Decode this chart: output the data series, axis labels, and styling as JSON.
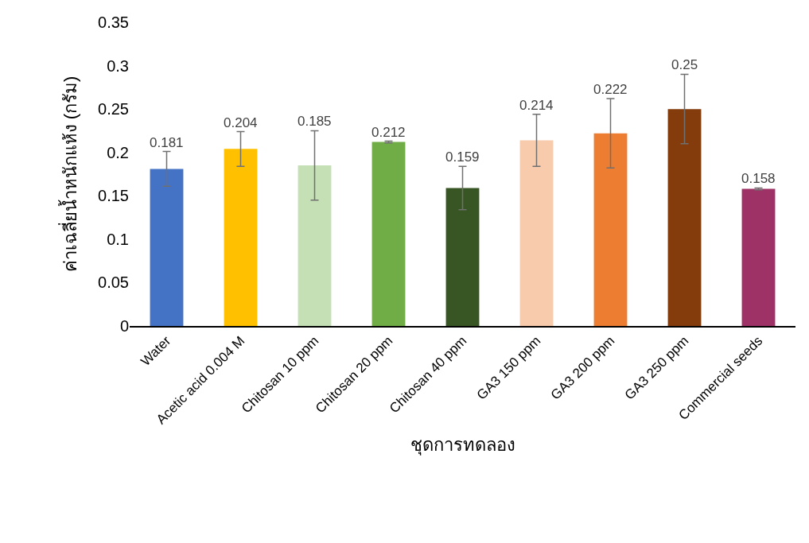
{
  "chart_data": {
    "type": "bar",
    "xlabel": "ชุดการทดลอง",
    "ylabel": "ค่าเฉลี่ยน้ำหนักแห้ง (กรัม)",
    "categories": [
      "Water",
      "Acetic acid 0.004 M",
      "Chitosan 10 ppm",
      "Chitosan 20 ppm",
      "Chitosan 40 ppm",
      "GA3 150 ppm",
      "GA3 200 ppm",
      "GA3 250 ppm",
      "Commercial seeds"
    ],
    "values": [
      0.181,
      0.204,
      0.185,
      0.212,
      0.159,
      0.214,
      0.222,
      0.25,
      0.158
    ],
    "colors": [
      "#4472c4",
      "#ffc000",
      "#c5e0b4",
      "#70ad47",
      "#375623",
      "#f8cbad",
      "#ed7d31",
      "#843c0c",
      "#9e3165"
    ],
    "errors": [
      0.02,
      0.02,
      0.04,
      0.001,
      0.025,
      0.03,
      0.04,
      0.04,
      0.001
    ],
    "ylim": [
      0,
      0.35
    ],
    "yticks": [
      0,
      0.05,
      0.1,
      0.15,
      0.2,
      0.25,
      0.3,
      0.35
    ],
    "data_labels": true,
    "grid": false,
    "legend": false
  }
}
